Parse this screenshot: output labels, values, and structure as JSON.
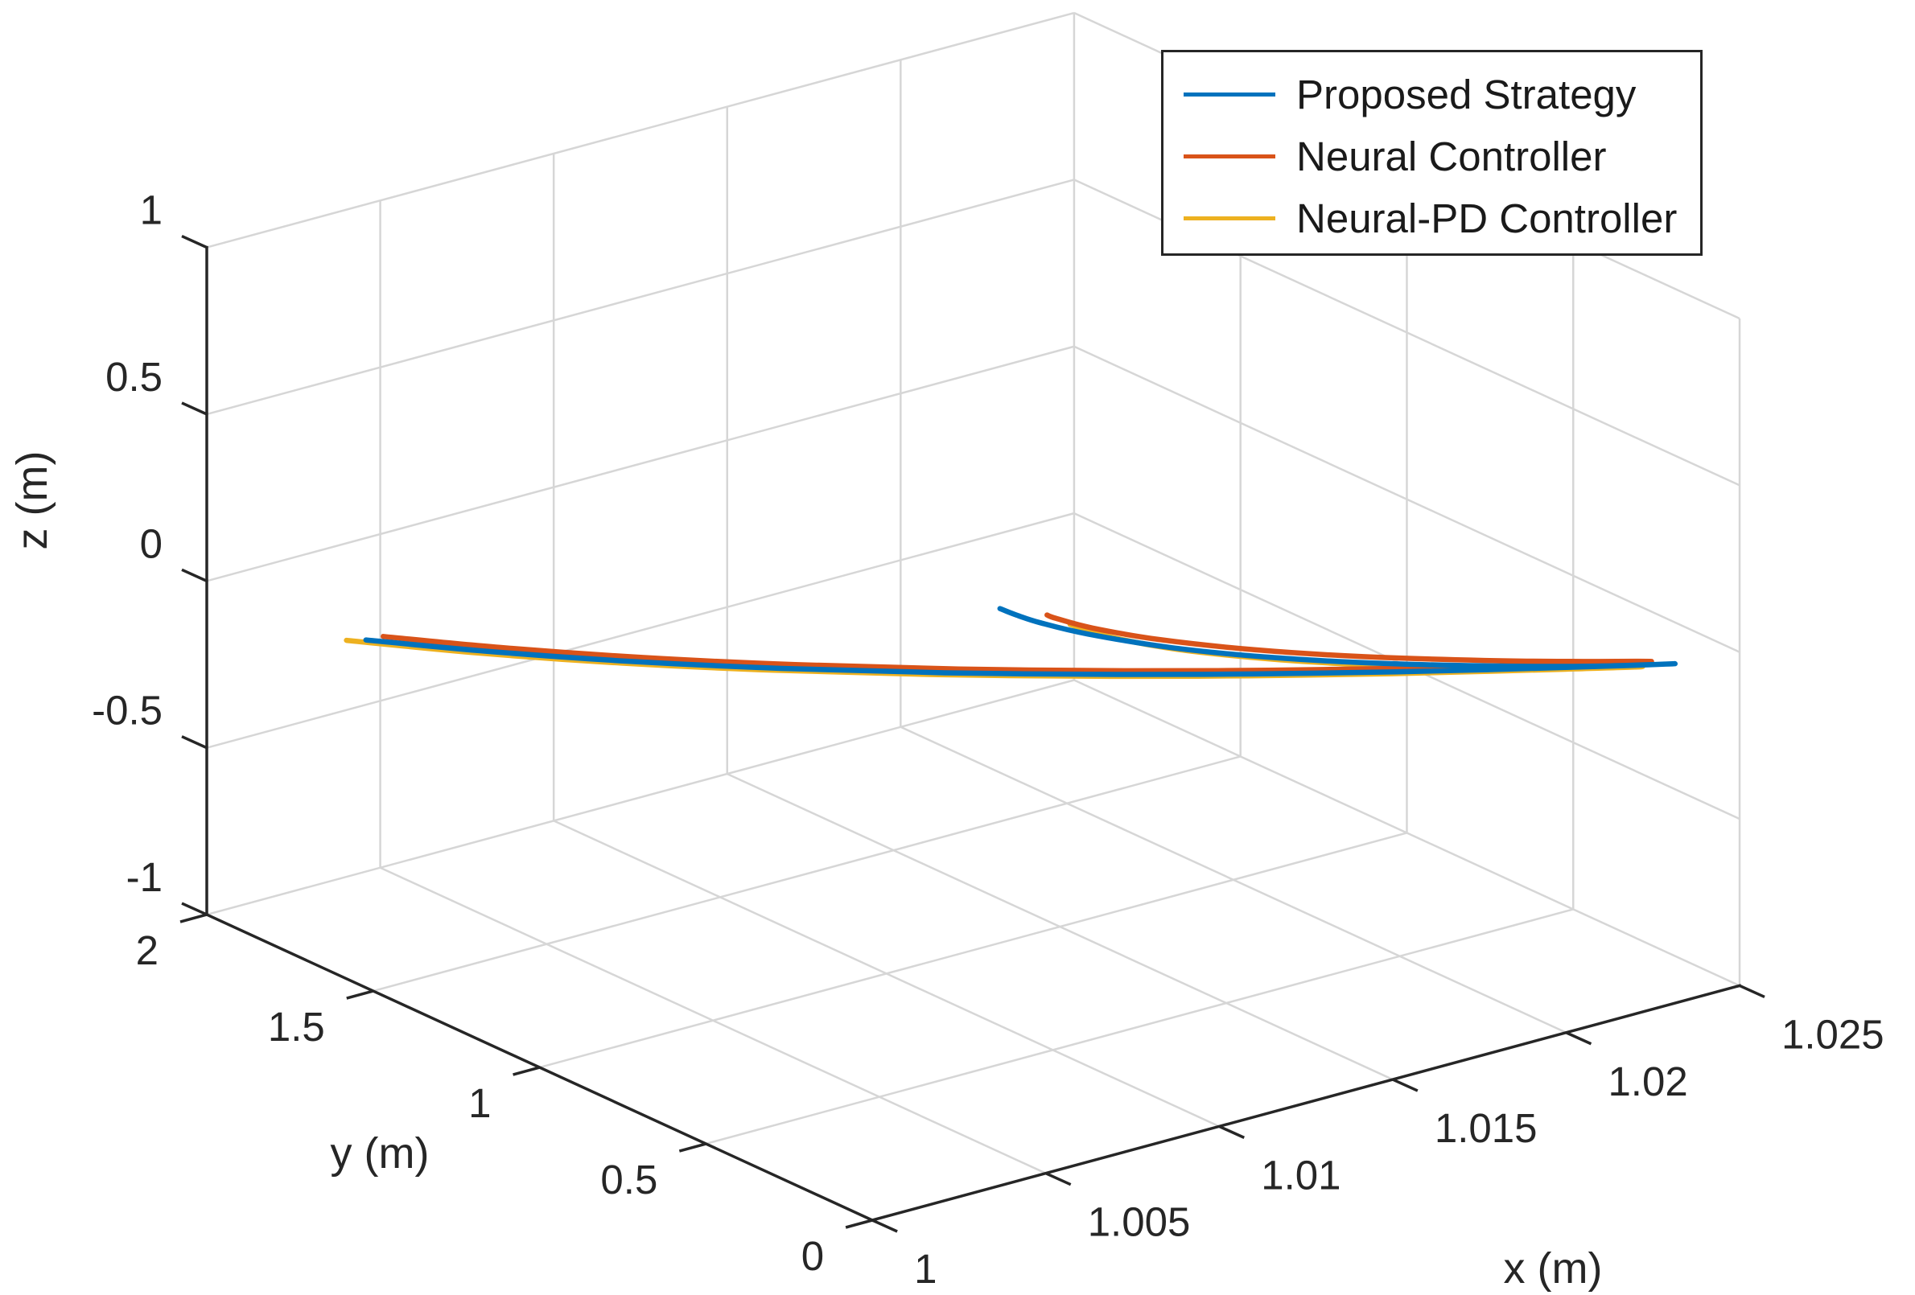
{
  "figure": {
    "background_color": "#ffffff",
    "axis_color": "#262626",
    "grid_color": "#d6d6d6"
  },
  "chart_data": {
    "type": "line",
    "subtype": "3d-trajectory",
    "title": "",
    "xlabel": "x (m)",
    "ylabel": "y (m)",
    "zlabel": "z (m)",
    "xlim": [
      1,
      1.025
    ],
    "ylim": [
      0,
      2
    ],
    "zlim": [
      -1,
      1
    ],
    "x_ticks": [
      1,
      1.005,
      1.01,
      1.015,
      1.02,
      1.025
    ],
    "x_tick_labels": [
      "1",
      "1.005",
      "1.01",
      "1.015",
      "1.02",
      "1.025"
    ],
    "y_ticks": [
      0,
      0.5,
      1,
      1.5,
      2
    ],
    "y_tick_labels": [
      "0",
      "0.5",
      "1",
      "1.5",
      "2"
    ],
    "z_ticks": [
      -1,
      -0.5,
      0,
      0.5,
      1
    ],
    "z_tick_labels": [
      "-1",
      "-0.5",
      "0",
      "0.5",
      "1"
    ],
    "grid": true,
    "view": {
      "azimuth_deg": -37.5,
      "elevation_deg": 30,
      "projection": "orthographic, stretch-to-fill"
    },
    "legend": {
      "position": "northeast",
      "entries": [
        "Proposed Strategy",
        "Neural Controller",
        "Neural-PD Controller"
      ]
    },
    "series": [
      {
        "name": "Proposed Strategy",
        "color": "#0072BD",
        "points": [
          [
            1.00056,
            1.58,
            0
          ],
          [
            1.00229,
            1.4,
            0
          ],
          [
            1.00448,
            1.2,
            0
          ],
          [
            1.00697,
            1.0,
            0
          ],
          [
            1.00976,
            0.8,
            0
          ],
          [
            1.01284,
            0.6,
            0
          ],
          [
            1.01534,
            0.45,
            0
          ],
          [
            1.01801,
            0.3,
            0
          ],
          [
            1.01989,
            0.2,
            0
          ],
          [
            1.02144,
            0.12,
            0
          ],
          [
            1.02263,
            0.06,
            0
          ],
          [
            1.02335,
            0.025,
            0
          ],
          [
            1.02188,
            0.1,
            0
          ],
          [
            1.02024,
            0.2,
            0
          ],
          [
            1.01809,
            0.35,
            0
          ],
          [
            1.01629,
            0.5,
            0
          ],
          [
            1.01488,
            0.65,
            0
          ],
          [
            1.01389,
            0.8,
            0
          ],
          [
            1.01347,
            0.9,
            0
          ],
          [
            1.01334,
            0.96,
            0
          ],
          [
            1.0133,
            1.003,
            0
          ]
        ]
      },
      {
        "name": "Neural Controller",
        "color": "#D95319",
        "points": [
          [
            1.00101,
            1.575,
            0
          ],
          [
            1.00269,
            1.4,
            0
          ],
          [
            1.00488,
            1.2,
            0
          ],
          [
            1.00737,
            1.0,
            0
          ],
          [
            1.01016,
            0.8,
            0
          ],
          [
            1.01324,
            0.6,
            0
          ],
          [
            1.01574,
            0.45,
            0
          ],
          [
            1.01841,
            0.3,
            0
          ],
          [
            1.02029,
            0.2,
            0
          ],
          [
            1.02184,
            0.12,
            0
          ],
          [
            1.02303,
            0.06,
            0
          ],
          [
            1.02156,
            0.15,
            0
          ],
          [
            1.02004,
            0.25,
            0
          ],
          [
            1.018,
            0.4,
            0
          ],
          [
            1.01629,
            0.55,
            0
          ],
          [
            1.01495,
            0.7,
            0
          ],
          [
            1.01421,
            0.82,
            0
          ],
          [
            1.01393,
            0.9,
            0
          ],
          [
            1.0139,
            0.924,
            0
          ]
        ]
      },
      {
        "name": "Neural-PD Controller",
        "color": "#EDB120",
        "points": [
          [
            1.00019,
            1.6,
            0
          ],
          [
            1.00209,
            1.4,
            0
          ],
          [
            1.00428,
            1.2,
            0
          ],
          [
            1.00677,
            1.0,
            0
          ],
          [
            1.00956,
            0.8,
            0
          ],
          [
            1.01264,
            0.6,
            0
          ],
          [
            1.01514,
            0.45,
            0
          ],
          [
            1.01781,
            0.3,
            0
          ],
          [
            1.01969,
            0.2,
            0
          ],
          [
            1.02124,
            0.12,
            0
          ],
          [
            1.02264,
            0.05,
            0
          ],
          [
            1.02009,
            0.2,
            0
          ],
          [
            1.01727,
            0.4,
            0
          ],
          [
            1.01521,
            0.6,
            0
          ],
          [
            1.01424,
            0.75,
            0
          ],
          [
            1.01395,
            0.86,
            0
          ]
        ]
      }
    ]
  }
}
